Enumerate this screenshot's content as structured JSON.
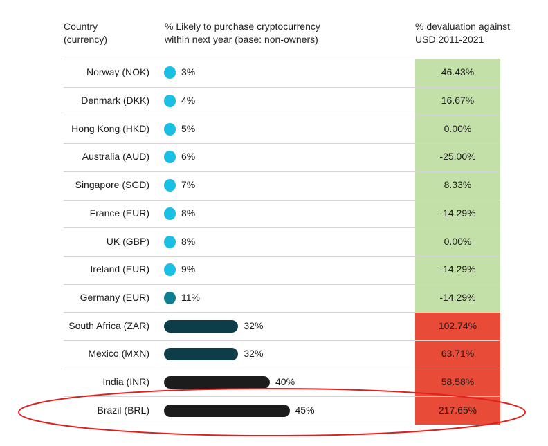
{
  "headers": {
    "country": [
      "Country",
      "(currency)"
    ],
    "purchase": [
      "% Likely to purchase cryptocurrency",
      "within next year (base: non-owners)"
    ],
    "devaluation": [
      "% devaluation against",
      "USD 2011-2021"
    ]
  },
  "colors": {
    "bar_light": "#19c0e3",
    "bar_teal": "#0c7f92",
    "bar_dark_teal": "#0c3d48",
    "bar_black": "#1c1c1c",
    "cell_green": "#c3e0a8",
    "cell_red": "#e84c38",
    "highlight": "#e02020"
  },
  "chart_data": {
    "type": "bar",
    "categories": [
      "Norway (NOK)",
      "Denmark (DKK)",
      "Hong Kong (HKD)",
      "Australia (AUD)",
      "Singapore (SGD)",
      "France (EUR)",
      "UK (GBP)",
      "Ireland (EUR)",
      "Germany (EUR)",
      "South Africa (ZAR)",
      "Mexico (MXN)",
      "India (INR)",
      "Brazil (BRL)"
    ],
    "series": [
      {
        "name": "% Likely to purchase cryptocurrency within next year (base: non-owners)",
        "values": [
          3,
          4,
          5,
          6,
          7,
          8,
          8,
          9,
          11,
          32,
          32,
          40,
          45
        ],
        "labels": [
          "3%",
          "4%",
          "5%",
          "6%",
          "7%",
          "8%",
          "8%",
          "9%",
          "11%",
          "32%",
          "32%",
          "40%",
          "45%"
        ],
        "color_groups": [
          "bar_light",
          "bar_light",
          "bar_light",
          "bar_light",
          "bar_light",
          "bar_light",
          "bar_light",
          "bar_light",
          "bar_teal",
          "bar_dark_teal",
          "bar_dark_teal",
          "bar_black",
          "bar_black"
        ]
      },
      {
        "name": "% devaluation against USD 2011-2021",
        "values": [
          46.43,
          16.67,
          0.0,
          -25.0,
          8.33,
          -14.29,
          0.0,
          -14.29,
          -14.29,
          102.74,
          63.71,
          58.58,
          217.65
        ],
        "labels": [
          "46.43%",
          "16.67%",
          "0.00%",
          "-25.00%",
          "8.33%",
          "-14.29%",
          "0.00%",
          "-14.29%",
          "-14.29%",
          "102.74%",
          "63.71%",
          "58.58%",
          "217.65%"
        ],
        "cell_colors": [
          "cell_green",
          "cell_green",
          "cell_green",
          "cell_green",
          "cell_green",
          "cell_green",
          "cell_green",
          "cell_green",
          "cell_green",
          "cell_red",
          "cell_red",
          "cell_red",
          "cell_red"
        ]
      }
    ],
    "highlighted_category": "Brazil (BRL)"
  }
}
